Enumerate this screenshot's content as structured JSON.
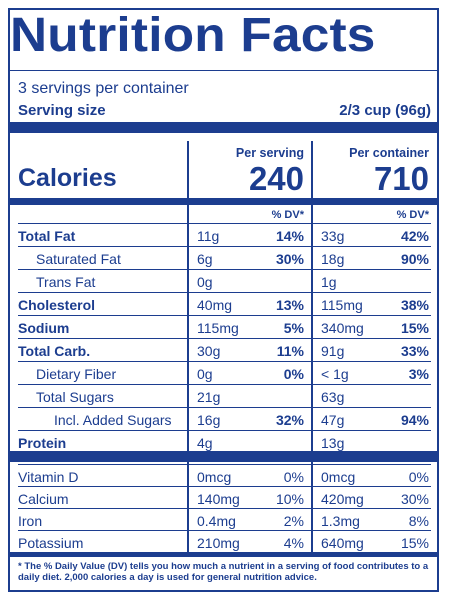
{
  "title": "Nutrition Facts",
  "servings": "3 servings per container",
  "serving_size_label": "Serving size",
  "serving_size_value": "2/3 cup (96g)",
  "col1_header": "Per serving",
  "col2_header": "Per container",
  "calories_label": "Calories",
  "calories_serving": "240",
  "calories_container": "710",
  "dv_header": "% DV*",
  "rows": [
    {
      "name": "Total Fat",
      "a1": "11g",
      "p1": "14%",
      "a2": "33g",
      "p2": "42%"
    },
    {
      "name": "Saturated Fat",
      "a1": "6g",
      "p1": "30%",
      "a2": "18g",
      "p2": "90%"
    },
    {
      "name": "Trans Fat",
      "a1": "0g",
      "p1": "",
      "a2": "1g",
      "p2": ""
    },
    {
      "name": "Cholesterol",
      "a1": "40mg",
      "p1": "13%",
      "a2": "115mg",
      "p2": "38%"
    },
    {
      "name": "Sodium",
      "a1": "115mg",
      "p1": "5%",
      "a2": "340mg",
      "p2": "15%"
    },
    {
      "name": "Total Carb.",
      "a1": "30g",
      "p1": "11%",
      "a2": "91g",
      "p2": "33%"
    },
    {
      "name": "Dietary Fiber",
      "a1": "0g",
      "p1": "0%",
      "a2": "< 1g",
      "p2": "3%"
    },
    {
      "name": "Total Sugars",
      "a1": "21g",
      "p1": "",
      "a2": "63g",
      "p2": ""
    },
    {
      "name": "Incl. Added Sugars",
      "a1": "16g",
      "p1": "32%",
      "a2": "47g",
      "p2": "94%"
    },
    {
      "name": "Protein",
      "a1": "4g",
      "p1": "",
      "a2": "13g",
      "p2": ""
    }
  ],
  "vitamins": [
    {
      "name": "Vitamin D",
      "a1": "0mcg",
      "p1": "0%",
      "a2": "0mcg",
      "p2": "0%"
    },
    {
      "name": "Calcium",
      "a1": "140mg",
      "p1": "10%",
      "a2": "420mg",
      "p2": "30%"
    },
    {
      "name": "Iron",
      "a1": "0.4mg",
      "p1": "2%",
      "a2": "1.3mg",
      "p2": "8%"
    },
    {
      "name": "Potassium",
      "a1": "210mg",
      "p1": "4%",
      "a2": "640mg",
      "p2": "15%"
    }
  ],
  "footnote": "* The % Daily Value (DV) tells you how much a nutrient in a serving of food contributes to a daily diet. 2,000 calories a day is used for general nutrition advice."
}
